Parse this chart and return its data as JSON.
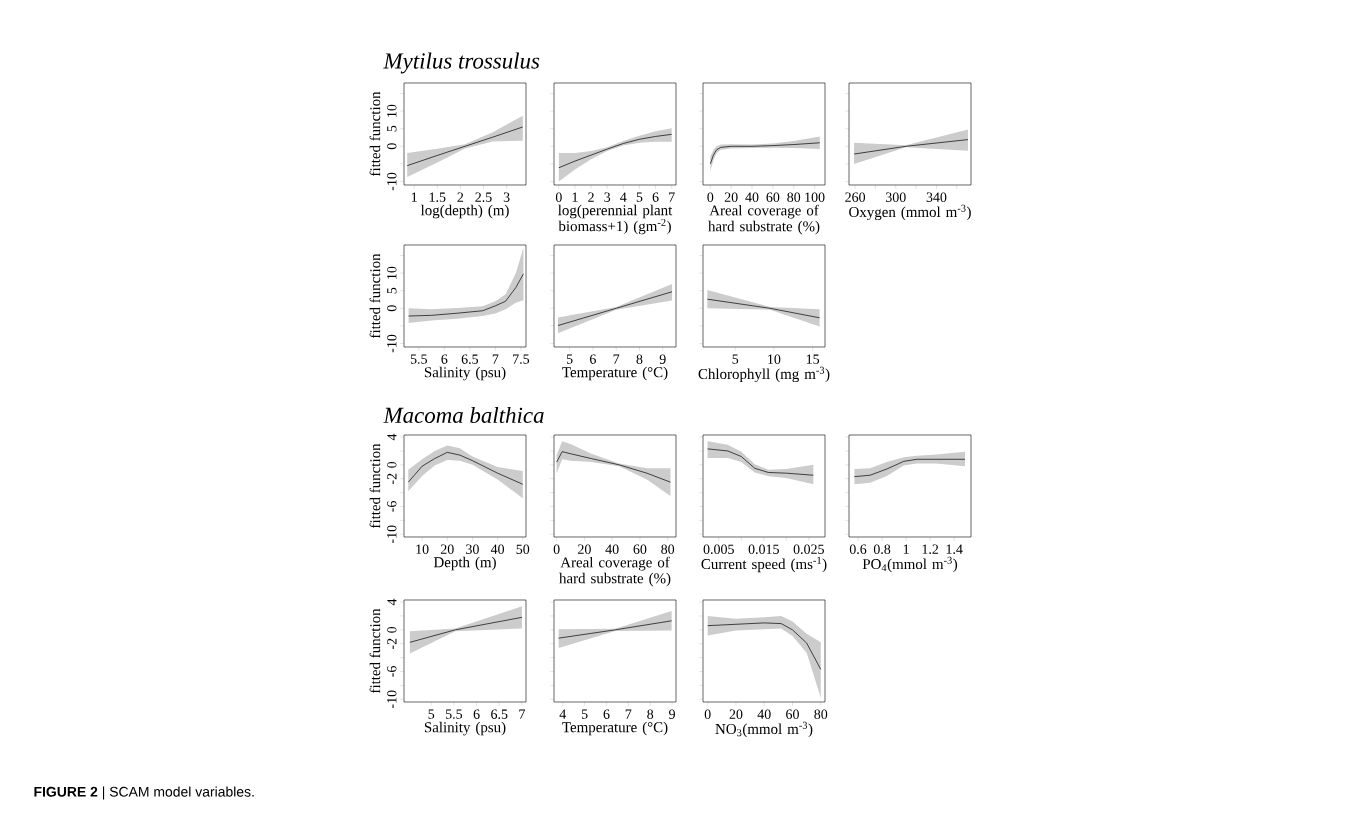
{
  "chart_data": [
    {
      "type": "line",
      "title": "Mytilus trossulus",
      "xlabel": "log(depth) (m)",
      "ylabel": "fitted function",
      "annotations": [
        "**FIGURE 2** | SCAM model variables."
      ],
      "x": [
        0.85,
        1.5,
        2.1,
        2.7,
        3.35
      ],
      "series": [
        {
          "color": "#000000",
          "values": [
            -5.5,
            -2.6,
            0,
            2.6,
            5.5
          ],
          "lower": [
            -8.7,
            -4.6,
            -0.6,
            1.4,
            1.6
          ],
          "upper": [
            -1.9,
            -0.7,
            0.6,
            4.0,
            8.7
          ]
        }
      ],
      "xlim": [
        0.78,
        3.42
      ],
      "xticks": [
        1,
        1.5,
        2,
        2.5,
        3
      ],
      "ylim": [
        -11,
        18
      ],
      "yticks": [
        -10,
        {
          "value": -5,
          "label": null
        },
        0,
        5,
        10,
        {
          "value": 15,
          "label": null
        }
      ]
    },
    {
      "type": "line",
      "xlabel": "log(perennial plant biomass+1) (gm$^{-2}$)",
      "tick_labels": "x",
      "x": [
        0,
        1,
        2,
        3,
        4,
        5,
        6,
        7
      ],
      "series": [
        {
          "color": "#000000",
          "values": [
            -6.1,
            -4.2,
            -2.5,
            -0.8,
            0.8,
            2.0,
            2.8,
            3.4
          ],
          "lower": [
            -10,
            -6.6,
            -3.7,
            -1.3,
            0.2,
            1.0,
            1.3,
            1.3
          ],
          "upper": [
            -1.9,
            -1.9,
            -1.3,
            -0.3,
            1.5,
            3.0,
            4.3,
            5.1
          ]
        }
      ],
      "xlim": [
        -0.3,
        7.27
      ],
      "xticks": [
        0,
        1,
        2,
        3,
        4,
        5,
        6,
        7
      ],
      "ylim": [
        -11,
        18
      ],
      "yticks": [
        -10,
        {
          "value": -5,
          "label": null
        },
        0,
        5,
        10,
        {
          "value": 15,
          "label": null
        }
      ]
    },
    {
      "type": "line",
      "xlabel": "Areal coverage of hard substrate (%)",
      "tick_labels": "x",
      "x": [
        0,
        3,
        6,
        10,
        20,
        40,
        60,
        80,
        105
      ],
      "series": [
        {
          "color": "#000000",
          "values": [
            -5,
            -2.5,
            -1,
            -0.3,
            0,
            0,
            0.2,
            0.5,
            1.0
          ],
          "lower": [
            -7,
            -4,
            -2,
            -1,
            -0.6,
            -0.5,
            -0.4,
            -0.5,
            -0.8
          ],
          "upper": [
            -3,
            -1,
            0,
            0.5,
            0.6,
            0.5,
            0.8,
            1.5,
            2.8
          ]
        }
      ],
      "xlim": [
        -7,
        110
      ],
      "xticks": [
        0,
        20,
        40,
        60,
        80,
        100
      ],
      "ylim": [
        -11,
        18
      ],
      "yticks": [
        -10,
        {
          "value": -5,
          "label": null
        },
        0,
        5,
        10,
        {
          "value": 15,
          "label": null
        }
      ]
    },
    {
      "type": "line",
      "xlabel": "Oxygen (mmol m$^{-3}$)",
      "tick_labels": "x",
      "x": [
        259,
        310,
        371
      ],
      "series": [
        {
          "color": "#000000",
          "values": [
            -2.2,
            0,
            1.9
          ],
          "lower": [
            -5,
            -0.3,
            -1.25
          ],
          "upper": [
            1,
            0.3,
            4.8
          ]
        }
      ],
      "xlim": [
        254,
        374
      ],
      "xticks": [
        260,
        {
          "value": 280,
          "label": null
        },
        300,
        {
          "value": 320,
          "label": null
        },
        340,
        {
          "value": 360,
          "label": null
        }
      ],
      "ylim": [
        -11,
        18
      ],
      "yticks": [
        -10,
        {
          "value": -5,
          "label": null
        },
        0,
        5,
        10,
        {
          "value": 15,
          "label": null
        }
      ]
    },
    {
      "type": "line",
      "xlabel": "Salinity (psu)",
      "ylabel": "fitted function",
      "x": [
        5.3,
        5.75,
        6.25,
        6.75,
        7.0,
        7.2,
        7.4,
        7.55
      ],
      "series": [
        {
          "color": "#000000",
          "values": [
            -2.2,
            -2.0,
            -1.4,
            -0.7,
            0.7,
            2.0,
            5.9,
            9.8
          ],
          "lower": [
            -4.2,
            -3.5,
            -3,
            -2.2,
            -1.5,
            -0.3,
            1.6,
            2.3
          ],
          "upper": [
            0,
            -0.3,
            0.1,
            0.6,
            2.0,
            4.0,
            10,
            17.2
          ]
        }
      ],
      "xlim": [
        5.21,
        7.6
      ],
      "xticks": [
        5.5,
        6,
        6.5,
        7,
        7.5
      ],
      "ylim": [
        -11,
        18
      ],
      "yticks": [
        -10,
        {
          "value": -5,
          "label": null
        },
        0,
        5,
        10,
        {
          "value": 15,
          "label": null
        }
      ]
    },
    {
      "type": "line",
      "xlabel": "Temperature (°C)",
      "tick_labels": "x",
      "x": [
        4.5,
        7,
        9.4
      ],
      "series": [
        {
          "color": "#000000",
          "values": [
            -4.9,
            0,
            4.7
          ],
          "lower": [
            -7.1,
            -0.4,
            2.25
          ],
          "upper": [
            -2.6,
            0.4,
            6.9
          ]
        }
      ],
      "xlim": [
        4.33,
        9.57
      ],
      "xticks": [
        5,
        6,
        7,
        8,
        9
      ],
      "ylim": [
        -11,
        18
      ],
      "yticks": [
        -10,
        {
          "value": -5,
          "label": null
        },
        0,
        5,
        10,
        {
          "value": 15,
          "label": null
        }
      ]
    },
    {
      "type": "line",
      "xlabel": "Chlorophyll (mg m$^{-3}$)",
      "tick_labels": "x",
      "x": [
        1.4,
        9.5,
        15.9
      ],
      "series": [
        {
          "color": "#000000",
          "values": [
            2.6,
            0,
            -2.7
          ],
          "lower": [
            0,
            -0.4,
            -5.2
          ],
          "upper": [
            5.2,
            0.4,
            -0.3
          ]
        }
      ],
      "xlim": [
        0.84,
        16.6
      ],
      "xticks": [
        5,
        10,
        15
      ],
      "ylim": [
        -11,
        18
      ],
      "yticks": [
        -10,
        {
          "value": -5,
          "label": null
        },
        0,
        5,
        10,
        {
          "value": 15,
          "label": null
        }
      ]
    },
    {
      "type": "line",
      "title": "Macoma balthica",
      "xlabel": "Depth (m)",
      "ylabel": "fitted function",
      "x": [
        4.5,
        10,
        15,
        20,
        25,
        30,
        40,
        50
      ],
      "series": [
        {
          "color": "#000000",
          "values": [
            -2.5,
            -0.2,
            0.9,
            1.8,
            1.4,
            0.6,
            -1.2,
            -2.8
          ],
          "lower": [
            -3.8,
            -1.6,
            -0.1,
            0.7,
            0.6,
            0,
            -2.1,
            -4.8
          ],
          "upper": [
            -0.7,
            0.8,
            2.0,
            2.8,
            2.4,
            1.2,
            -0.3,
            -0.9
          ]
        }
      ],
      "xlim": [
        2.8,
        51.3
      ],
      "xticks": [
        10,
        20,
        30,
        40,
        50
      ],
      "ylim": [
        -10.4,
        4.3
      ],
      "yticks": [
        -10,
        {
          "value": -8,
          "label": null
        },
        -6,
        {
          "value": -4,
          "label": null
        },
        -2,
        0,
        {
          "value": 2,
          "label": null
        },
        4
      ]
    },
    {
      "type": "line",
      "xlabel": "Areal coverage of hard substrate (%)",
      "tick_labels": "x",
      "x": [
        0,
        4,
        10,
        25,
        45,
        65,
        82
      ],
      "series": [
        {
          "color": "#000000",
          "values": [
            0.4,
            1.9,
            1.6,
            0.9,
            0,
            -1.2,
            -2.5
          ],
          "lower": [
            -1.2,
            0.8,
            0.6,
            0.4,
            -0.2,
            -2.1,
            -4.5
          ],
          "upper": [
            1.4,
            3.4,
            3.0,
            1.6,
            0.2,
            -0.5,
            -0.5
          ]
        }
      ],
      "xlim": [
        -1.9,
        86
      ],
      "xticks": [
        0,
        20,
        40,
        60,
        80
      ],
      "ylim": [
        -10.4,
        4.3
      ],
      "yticks": [
        -10,
        {
          "value": -8,
          "label": null
        },
        -6,
        {
          "value": -4,
          "label": null
        },
        -2,
        0,
        {
          "value": 2,
          "label": null
        },
        4
      ]
    },
    {
      "type": "line",
      "xlabel": "Current speed (ms$^{-1}$)",
      "tick_labels": "x",
      "x": [
        0.0025,
        0.007,
        0.01,
        0.013,
        0.016,
        0.02,
        0.026
      ],
      "series": [
        {
          "color": "#000000",
          "values": [
            2.3,
            2.0,
            1.2,
            -0.5,
            -1.1,
            -1.2,
            -1.5
          ],
          "lower": [
            1.0,
            1.0,
            0.4,
            -1.1,
            -1.65,
            -1.9,
            -2.8
          ],
          "upper": [
            3.4,
            2.9,
            1.9,
            0.1,
            -0.7,
            -0.6,
            0
          ]
        }
      ],
      "xlim": [
        0.0015,
        0.0286
      ],
      "xticks": [
        0.005,
        {
          "value": 0.01,
          "label": null
        },
        0.015,
        {
          "value": 0.02,
          "label": null
        },
        0.025
      ],
      "ylim": [
        -10.4,
        4.3
      ],
      "yticks": [
        -10,
        {
          "value": -8,
          "label": null
        },
        -6,
        {
          "value": -4,
          "label": null
        },
        -2,
        0,
        {
          "value": 2,
          "label": null
        },
        4
      ]
    },
    {
      "type": "line",
      "xlabel": "PO$_{4}$(mmol m$^{-3}$)",
      "tick_labels": "x",
      "x": [
        0.57,
        0.7,
        0.84,
        0.98,
        1.09,
        1.25,
        1.49
      ],
      "series": [
        {
          "color": "#000000",
          "values": [
            -1.7,
            -1.5,
            -0.6,
            0.5,
            0.8,
            0.8,
            0.8
          ],
          "lower": [
            -2.8,
            -2.6,
            -1.6,
            -0.1,
            0.2,
            0.2,
            -0.2
          ],
          "upper": [
            -0.6,
            -0.5,
            0.4,
            1.1,
            1.3,
            1.5,
            1.9
          ]
        }
      ],
      "xlim": [
        0.525,
        1.54
      ],
      "xticks": [
        0.6,
        0.8,
        1,
        1.2,
        1.4
      ],
      "ylim": [
        -10.4,
        4.3
      ],
      "yticks": [
        -10,
        {
          "value": -8,
          "label": null
        },
        -6,
        {
          "value": -4,
          "label": null
        },
        -2,
        0,
        {
          "value": 2,
          "label": null
        },
        4
      ]
    },
    {
      "type": "line",
      "xlabel": "Salinity (psu)",
      "ylabel": "fitted function",
      "x": [
        4.53,
        5.53,
        7.0
      ],
      "series": [
        {
          "color": "#000000",
          "values": [
            -1.8,
            0,
            1.8
          ],
          "lower": [
            -3.4,
            -0.2,
            0.2
          ],
          "upper": [
            -0.2,
            0.2,
            3.4
          ]
        }
      ],
      "xlim": [
        4.4,
        7.09
      ],
      "xticks": [
        5,
        5.5,
        6,
        6.5,
        7
      ],
      "ylim": [
        -10.4,
        4.3
      ],
      "yticks": [
        -10,
        {
          "value": -8,
          "label": null
        },
        -6,
        {
          "value": -4,
          "label": null
        },
        -2,
        0,
        {
          "value": 2,
          "label": null
        },
        4
      ]
    },
    {
      "type": "line",
      "xlabel": "Temperature (°C)",
      "tick_labels": "x",
      "x": [
        3.81,
        6.4,
        8.98
      ],
      "series": [
        {
          "color": "#000000",
          "values": [
            -1.2,
            0,
            1.3
          ],
          "lower": [
            -2.6,
            -0.15,
            -0.1
          ],
          "upper": [
            0.1,
            0.15,
            2.7
          ]
        }
      ],
      "xlim": [
        3.6,
        9.18
      ],
      "xticks": [
        4,
        5,
        6,
        7,
        8,
        9
      ],
      "ylim": [
        -10.4,
        4.3
      ],
      "yticks": [
        -10,
        {
          "value": -8,
          "label": null
        },
        -6,
        {
          "value": -4,
          "label": null
        },
        -2,
        0,
        {
          "value": 2,
          "label": null
        },
        4
      ]
    },
    {
      "type": "line",
      "xlabel": "NO$_{3}$(mmol m$^{-3}$)",
      "tick_labels": "x",
      "x": [
        0,
        20,
        40,
        52,
        60,
        70,
        80
      ],
      "series": [
        {
          "color": "#000000",
          "values": [
            0.6,
            0.8,
            1.0,
            0.9,
            0,
            -1.9,
            -5.7
          ],
          "lower": [
            -0.8,
            -0.1,
            0.1,
            0.2,
            -0.9,
            -3.3,
            -9.8
          ],
          "upper": [
            2,
            1.6,
            1.8,
            2.0,
            1.2,
            -0.56,
            -1.8
          ]
        }
      ],
      "xlim": [
        -3.3,
        83
      ],
      "xticks": [
        0,
        20,
        40,
        60,
        80
      ],
      "ylim": [
        -10.4,
        4.3
      ],
      "yticks": [
        -10,
        {
          "value": -8,
          "label": null
        },
        -6,
        {
          "value": -4,
          "label": null
        },
        -2,
        0,
        {
          "value": 2,
          "label": null
        },
        4
      ]
    }
  ]
}
